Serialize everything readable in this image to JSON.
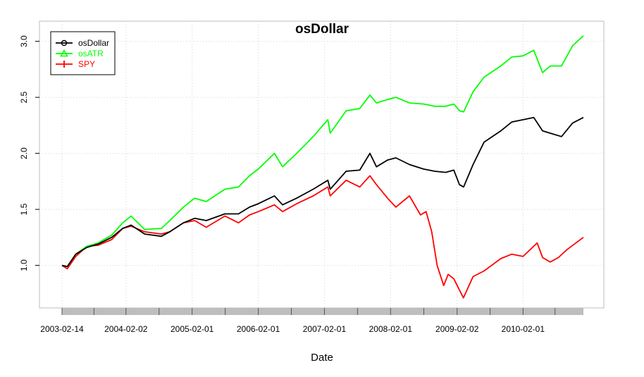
{
  "chart_data": {
    "type": "line",
    "title": "osDollar",
    "xlabel": "Date",
    "ylabel": "",
    "x_range": [
      "2003-02-14",
      "2010-12-31"
    ],
    "ylim": [
      0.62,
      3.18
    ],
    "grid": true,
    "legend_position": "top-left",
    "y_ticks": [
      "1.0",
      "1.5",
      "2.0",
      "2.5",
      "3.0"
    ],
    "x_ticks": [
      "2003-02-14",
      "2004-02-02",
      "2005-02-01",
      "2006-02-01",
      "2007-02-01",
      "2008-02-01",
      "2009-02-02",
      "2010-02-01"
    ],
    "series": [
      {
        "name": "osDollar",
        "color": "#000000",
        "points": [
          [
            "2003-02-14",
            1.0
          ],
          [
            "2003-03-15",
            0.99
          ],
          [
            "2003-05-01",
            1.1
          ],
          [
            "2003-07-01",
            1.16
          ],
          [
            "2003-09-01",
            1.19
          ],
          [
            "2003-11-15",
            1.25
          ],
          [
            "2004-01-15",
            1.33
          ],
          [
            "2004-03-01",
            1.36
          ],
          [
            "2004-05-15",
            1.28
          ],
          [
            "2004-08-15",
            1.26
          ],
          [
            "2004-10-01",
            1.3
          ],
          [
            "2004-12-15",
            1.38
          ],
          [
            "2005-02-15",
            1.42
          ],
          [
            "2005-04-20",
            1.4
          ],
          [
            "2005-08-01",
            1.46
          ],
          [
            "2005-10-15",
            1.46
          ],
          [
            "2005-12-15",
            1.52
          ],
          [
            "2006-02-01",
            1.55
          ],
          [
            "2006-05-01",
            1.62
          ],
          [
            "2006-06-15",
            1.54
          ],
          [
            "2006-09-01",
            1.6
          ],
          [
            "2006-12-01",
            1.68
          ],
          [
            "2007-02-20",
            1.76
          ],
          [
            "2007-03-05",
            1.68
          ],
          [
            "2007-06-01",
            1.84
          ],
          [
            "2007-08-15",
            1.85
          ],
          [
            "2007-10-10",
            2.0
          ],
          [
            "2007-11-15",
            1.88
          ],
          [
            "2008-01-15",
            1.94
          ],
          [
            "2008-03-01",
            1.96
          ],
          [
            "2008-05-15",
            1.9
          ],
          [
            "2008-08-01",
            1.86
          ],
          [
            "2008-10-01",
            1.84
          ],
          [
            "2008-12-01",
            1.83
          ],
          [
            "2009-01-15",
            1.85
          ],
          [
            "2009-02-15",
            1.72
          ],
          [
            "2009-03-10",
            1.7
          ],
          [
            "2009-05-01",
            1.9
          ],
          [
            "2009-07-01",
            2.1
          ],
          [
            "2009-10-01",
            2.2
          ],
          [
            "2009-12-01",
            2.28
          ],
          [
            "2010-02-01",
            2.3
          ],
          [
            "2010-04-01",
            2.32
          ],
          [
            "2010-05-20",
            2.2
          ],
          [
            "2010-07-01",
            2.18
          ],
          [
            "2010-09-01",
            2.15
          ],
          [
            "2010-11-01",
            2.27
          ],
          [
            "2010-12-31",
            2.32
          ]
        ]
      },
      {
        "name": "osATR",
        "color": "#00ff00",
        "points": [
          [
            "2003-02-14",
            1.0
          ],
          [
            "2003-03-15",
            0.99
          ],
          [
            "2003-05-01",
            1.1
          ],
          [
            "2003-07-01",
            1.17
          ],
          [
            "2003-09-01",
            1.2
          ],
          [
            "2003-11-15",
            1.27
          ],
          [
            "2004-01-15",
            1.38
          ],
          [
            "2004-03-01",
            1.44
          ],
          [
            "2004-05-15",
            1.32
          ],
          [
            "2004-08-15",
            1.33
          ],
          [
            "2004-10-01",
            1.4
          ],
          [
            "2004-12-15",
            1.52
          ],
          [
            "2005-02-15",
            1.6
          ],
          [
            "2005-04-20",
            1.57
          ],
          [
            "2005-08-01",
            1.68
          ],
          [
            "2005-10-15",
            1.7
          ],
          [
            "2005-12-15",
            1.8
          ],
          [
            "2006-02-01",
            1.86
          ],
          [
            "2006-05-01",
            2.0
          ],
          [
            "2006-06-15",
            1.88
          ],
          [
            "2006-09-01",
            2.0
          ],
          [
            "2006-12-01",
            2.15
          ],
          [
            "2007-02-20",
            2.3
          ],
          [
            "2007-03-05",
            2.18
          ],
          [
            "2007-06-01",
            2.38
          ],
          [
            "2007-08-15",
            2.4
          ],
          [
            "2007-10-10",
            2.52
          ],
          [
            "2007-11-15",
            2.45
          ],
          [
            "2008-01-15",
            2.48
          ],
          [
            "2008-03-01",
            2.5
          ],
          [
            "2008-05-15",
            2.45
          ],
          [
            "2008-08-01",
            2.44
          ],
          [
            "2008-10-01",
            2.42
          ],
          [
            "2008-12-01",
            2.42
          ],
          [
            "2009-01-15",
            2.44
          ],
          [
            "2009-02-15",
            2.38
          ],
          [
            "2009-03-10",
            2.37
          ],
          [
            "2009-05-01",
            2.55
          ],
          [
            "2009-07-01",
            2.68
          ],
          [
            "2009-10-01",
            2.78
          ],
          [
            "2009-12-01",
            2.86
          ],
          [
            "2010-02-01",
            2.87
          ],
          [
            "2010-04-01",
            2.92
          ],
          [
            "2010-05-20",
            2.72
          ],
          [
            "2010-07-01",
            2.78
          ],
          [
            "2010-09-01",
            2.78
          ],
          [
            "2010-11-01",
            2.96
          ],
          [
            "2010-12-31",
            3.05
          ]
        ]
      },
      {
        "name": "SPY",
        "color": "#ff0000",
        "points": [
          [
            "2003-02-14",
            1.0
          ],
          [
            "2003-03-15",
            0.97
          ],
          [
            "2003-05-01",
            1.08
          ],
          [
            "2003-07-01",
            1.17
          ],
          [
            "2003-09-01",
            1.18
          ],
          [
            "2003-11-15",
            1.23
          ],
          [
            "2004-01-15",
            1.33
          ],
          [
            "2004-03-01",
            1.35
          ],
          [
            "2004-05-15",
            1.3
          ],
          [
            "2004-08-15",
            1.28
          ],
          [
            "2004-10-01",
            1.3
          ],
          [
            "2004-12-15",
            1.38
          ],
          [
            "2005-02-15",
            1.4
          ],
          [
            "2005-04-20",
            1.34
          ],
          [
            "2005-08-01",
            1.44
          ],
          [
            "2005-10-15",
            1.38
          ],
          [
            "2005-12-15",
            1.45
          ],
          [
            "2006-02-01",
            1.48
          ],
          [
            "2006-05-01",
            1.54
          ],
          [
            "2006-06-15",
            1.48
          ],
          [
            "2006-09-01",
            1.55
          ],
          [
            "2006-12-01",
            1.62
          ],
          [
            "2007-02-20",
            1.7
          ],
          [
            "2007-03-05",
            1.62
          ],
          [
            "2007-06-01",
            1.76
          ],
          [
            "2007-08-15",
            1.7
          ],
          [
            "2007-10-10",
            1.8
          ],
          [
            "2007-11-15",
            1.72
          ],
          [
            "2008-01-15",
            1.6
          ],
          [
            "2008-03-01",
            1.52
          ],
          [
            "2008-05-15",
            1.62
          ],
          [
            "2008-07-15",
            1.45
          ],
          [
            "2008-08-15",
            1.48
          ],
          [
            "2008-09-15",
            1.3
          ],
          [
            "2008-10-15",
            1.0
          ],
          [
            "2008-11-20",
            0.82
          ],
          [
            "2008-12-15",
            0.92
          ],
          [
            "2009-01-15",
            0.88
          ],
          [
            "2009-03-09",
            0.71
          ],
          [
            "2009-05-01",
            0.9
          ],
          [
            "2009-07-01",
            0.95
          ],
          [
            "2009-10-01",
            1.06
          ],
          [
            "2009-12-01",
            1.1
          ],
          [
            "2010-02-01",
            1.08
          ],
          [
            "2010-04-20",
            1.2
          ],
          [
            "2010-05-20",
            1.07
          ],
          [
            "2010-07-01",
            1.03
          ],
          [
            "2010-08-15",
            1.07
          ],
          [
            "2010-10-01",
            1.14
          ],
          [
            "2010-12-31",
            1.25
          ]
        ]
      }
    ]
  }
}
